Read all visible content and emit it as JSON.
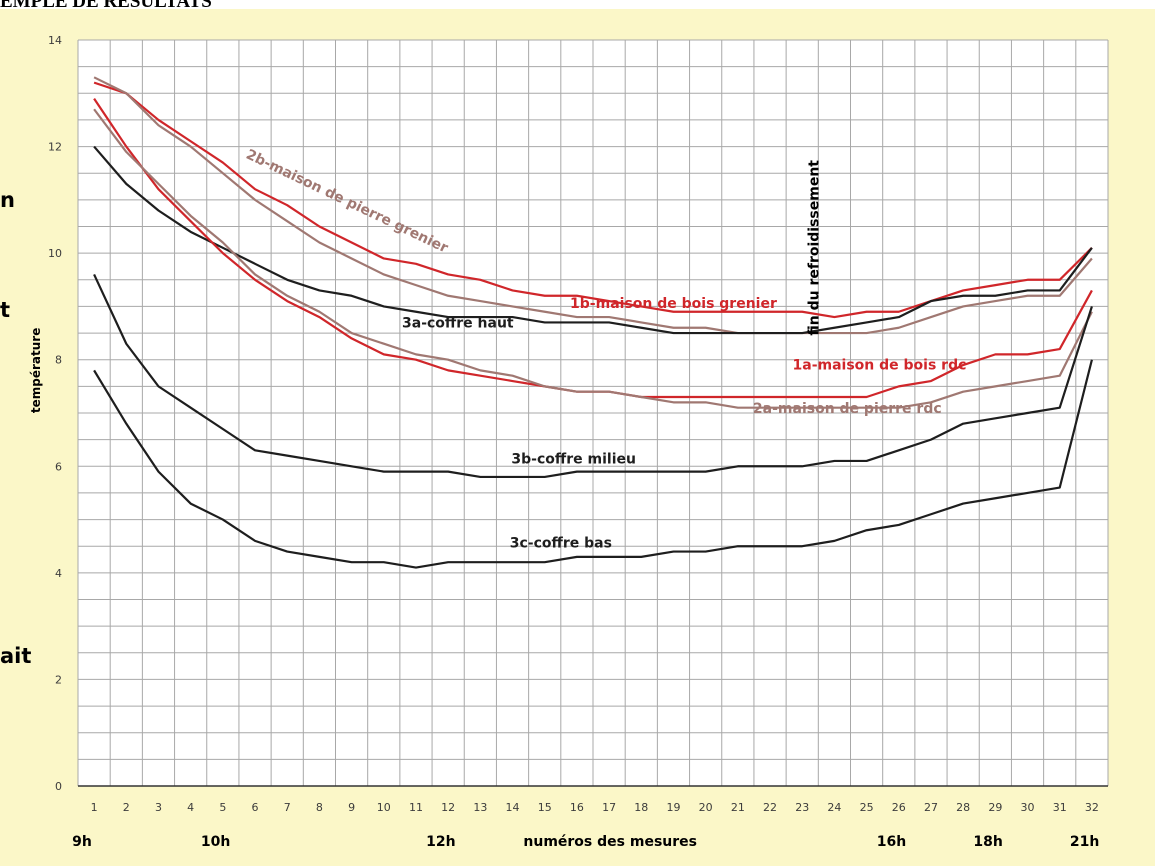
{
  "page": {
    "heading": "EMPLE DE RESULTATS",
    "side_fragments": [
      "n",
      "t",
      "ait"
    ]
  },
  "chart_data": {
    "type": "line",
    "title": "",
    "xlabel": "numéros des mesures",
    "ylabel": "température",
    "x": [
      1,
      2,
      3,
      4,
      5,
      6,
      7,
      8,
      9,
      10,
      11,
      12,
      13,
      14,
      15,
      16,
      17,
      18,
      19,
      20,
      21,
      22,
      23,
      24,
      25,
      26,
      27,
      28,
      29,
      30,
      31,
      32
    ],
    "xlim": [
      0.5,
      32.5
    ],
    "ylim": [
      0,
      14
    ],
    "yticks": [
      0,
      2,
      4,
      6,
      8,
      10,
      12,
      14
    ],
    "hour_labels": [
      {
        "x": 1,
        "label": "9h"
      },
      {
        "x": 5,
        "label": "10h"
      },
      {
        "x": 12,
        "label": "12h"
      },
      {
        "x": 26,
        "label": "16h"
      },
      {
        "x": 29,
        "label": "18h"
      },
      {
        "x": 32,
        "label": "21h"
      }
    ],
    "grid": true,
    "legend": "none",
    "series": [
      {
        "name": "1b-maison de bois grenier",
        "color": "#d0262a",
        "values": [
          13.2,
          13.0,
          12.5,
          12.1,
          11.7,
          11.2,
          10.9,
          10.5,
          10.2,
          9.9,
          9.8,
          9.6,
          9.5,
          9.3,
          9.2,
          9.2,
          9.1,
          9.0,
          8.9,
          8.9,
          8.9,
          8.9,
          8.9,
          8.8,
          8.9,
          8.9,
          9.1,
          9.3,
          9.4,
          9.5,
          9.5,
          10.1
        ],
        "label_at": [
          19,
          8.97
        ]
      },
      {
        "name": "2b-maison de pierre grenier",
        "color": "#a07872",
        "values": [
          13.3,
          13.0,
          12.4,
          12.0,
          11.5,
          11.0,
          10.6,
          10.2,
          9.9,
          9.6,
          9.4,
          9.2,
          9.1,
          9.0,
          8.9,
          8.8,
          8.8,
          8.7,
          8.6,
          8.6,
          8.5,
          8.5,
          8.5,
          8.5,
          8.5,
          8.6,
          8.8,
          9.0,
          9.1,
          9.2,
          9.2,
          9.9
        ],
        "label_at": [
          8.8,
          10.9
        ],
        "label_angle": 25.5
      },
      {
        "name": "3a-coffre haut",
        "color": "#1e1e1e",
        "values": [
          12.0,
          11.3,
          10.8,
          10.4,
          10.1,
          9.8,
          9.5,
          9.3,
          9.2,
          9.0,
          8.9,
          8.8,
          8.8,
          8.8,
          8.7,
          8.7,
          8.7,
          8.6,
          8.5,
          8.5,
          8.5,
          8.5,
          8.5,
          8.6,
          8.7,
          8.8,
          9.1,
          9.2,
          9.2,
          9.3,
          9.3,
          10.1
        ],
        "label_at": [
          12.3,
          8.6
        ]
      },
      {
        "name": "1a-maison de bois rdc",
        "color": "#d0262a",
        "values": [
          12.9,
          12.0,
          11.2,
          10.6,
          10.0,
          9.5,
          9.1,
          8.8,
          8.4,
          8.1,
          8.0,
          7.8,
          7.7,
          7.6,
          7.5,
          7.4,
          7.4,
          7.3,
          7.3,
          7.3,
          7.3,
          7.3,
          7.3,
          7.3,
          7.3,
          7.5,
          7.6,
          7.9,
          8.1,
          8.1,
          8.2,
          9.3
        ],
        "label_at": [
          25.4,
          7.82
        ]
      },
      {
        "name": "2a-maison de pierre rdc",
        "color": "#a07872",
        "values": [
          12.7,
          11.9,
          11.3,
          10.7,
          10.2,
          9.6,
          9.2,
          8.9,
          8.5,
          8.3,
          8.1,
          8.0,
          7.8,
          7.7,
          7.5,
          7.4,
          7.4,
          7.3,
          7.2,
          7.2,
          7.1,
          7.1,
          7.1,
          7.1,
          7.1,
          7.1,
          7.2,
          7.4,
          7.5,
          7.6,
          7.7,
          8.9
        ],
        "label_at": [
          24.4,
          7.0
        ]
      },
      {
        "name": "3b-coffre milieu",
        "color": "#1e1e1e",
        "values": [
          9.6,
          8.3,
          7.5,
          7.1,
          6.7,
          6.3,
          6.2,
          6.1,
          6.0,
          5.9,
          5.9,
          5.9,
          5.8,
          5.8,
          5.8,
          5.9,
          5.9,
          5.9,
          5.9,
          5.9,
          6.0,
          6.0,
          6.0,
          6.1,
          6.1,
          6.3,
          6.5,
          6.8,
          6.9,
          7.0,
          7.1,
          9.0
        ],
        "label_at": [
          15.9,
          6.05
        ]
      },
      {
        "name": "3c-coffre bas",
        "color": "#1e1e1e",
        "values": [
          7.8,
          6.8,
          5.9,
          5.3,
          5.0,
          4.6,
          4.4,
          4.3,
          4.2,
          4.2,
          4.1,
          4.2,
          4.2,
          4.2,
          4.2,
          4.3,
          4.3,
          4.3,
          4.4,
          4.4,
          4.5,
          4.5,
          4.5,
          4.6,
          4.8,
          4.9,
          5.1,
          5.3,
          5.4,
          5.5,
          5.6,
          8.0
        ],
        "label_at": [
          15.5,
          4.48
        ]
      }
    ],
    "annotations": [
      {
        "text": "fin du refroidissement",
        "x": 23.5,
        "y": 10.1,
        "angle": -90
      }
    ]
  }
}
